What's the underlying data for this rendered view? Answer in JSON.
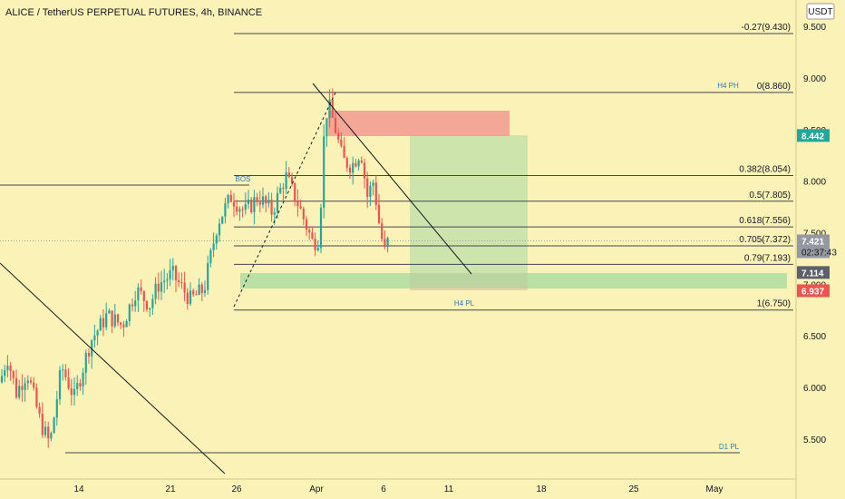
{
  "header": {
    "title": "ALICE / TetherUS PERPETUAL FUTURES, 4h, BINANCE",
    "currency": "USDT"
  },
  "chart_data": {
    "type": "candlestick",
    "y_ticks": [
      "9.500",
      "9.000",
      "8.500",
      "8.000",
      "7.500",
      "7.000",
      "6.500",
      "6.000",
      "5.500"
    ],
    "x_ticks": [
      "14",
      "21",
      "26",
      "Apr",
      "6",
      "11",
      "18",
      "25",
      "May"
    ],
    "fib_levels": [
      {
        "label": "-0.27(9.430)",
        "value": 9.43
      },
      {
        "label": "0(8.860)",
        "value": 8.86
      },
      {
        "label": "0.382(8.054)",
        "value": 8.054
      },
      {
        "label": "0.5(7.805)",
        "value": 7.805
      },
      {
        "label": "0.618(7.556)",
        "value": 7.556
      },
      {
        "label": "0.705(7.372)",
        "value": 7.372
      },
      {
        "label": "0.79(7.193)",
        "value": 7.193
      },
      {
        "label": "1(6.750)",
        "value": 6.75
      }
    ],
    "level_labels": [
      {
        "label": "H4 PH",
        "value": 8.86
      },
      {
        "label": "BOS",
        "value": 8.0
      },
      {
        "label": "H4 PL",
        "value": 6.75
      },
      {
        "label": "D1 PL",
        "value": 5.43
      }
    ],
    "price_tags": [
      {
        "value": "8.442",
        "color": "#26a69a"
      },
      {
        "value": "7.421",
        "color": "#9598a1",
        "sub": "02:37:43"
      },
      {
        "value": "7.114",
        "color": "#5d606b"
      },
      {
        "value": "6.937",
        "color": "#ef5350"
      }
    ]
  }
}
